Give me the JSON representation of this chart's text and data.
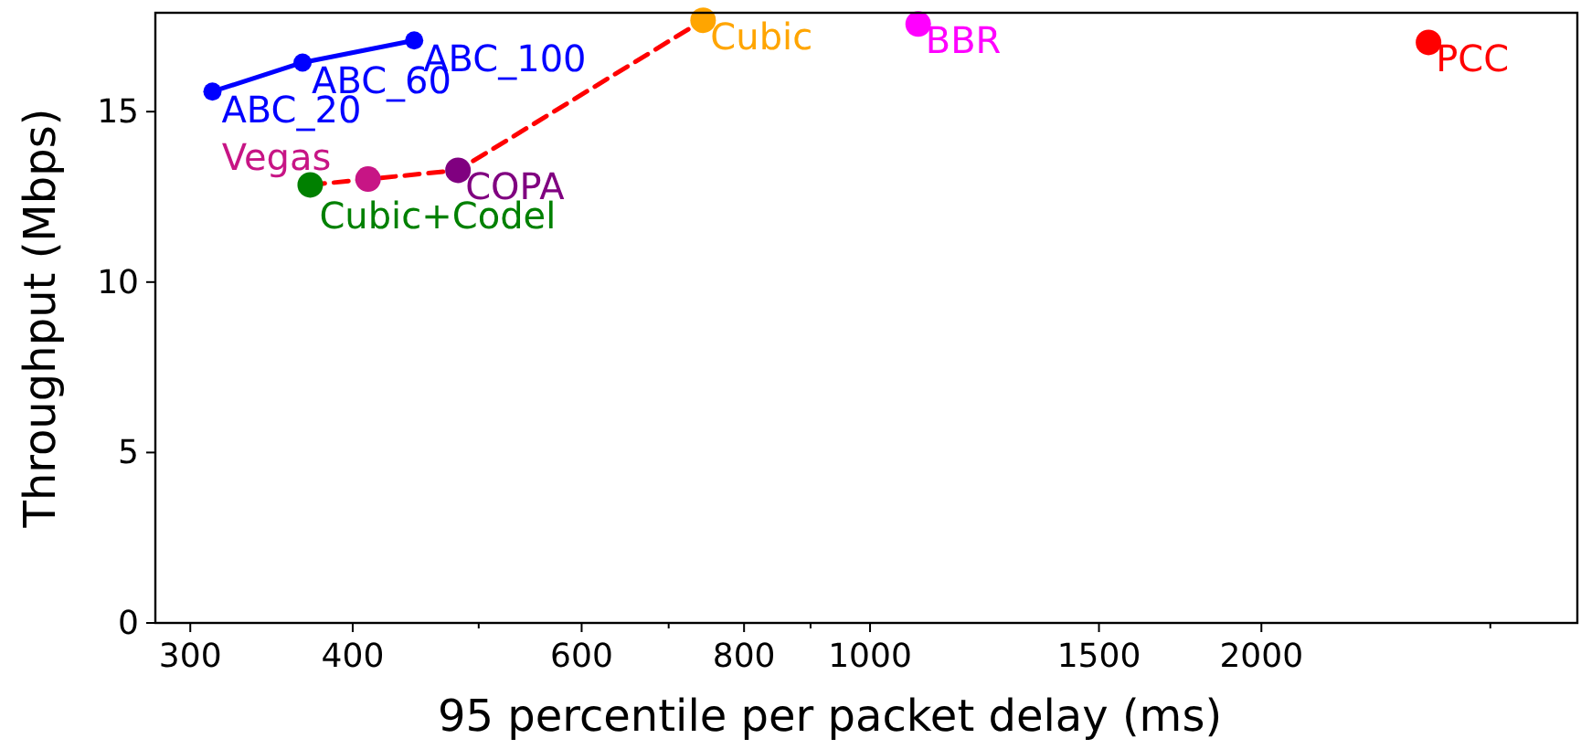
{
  "chart_data": {
    "type": "scatter",
    "xlabel": "95 percentile per packet delay (ms)",
    "ylabel": "Throughput (Mbps)",
    "log": "x",
    "xlim": [
      282,
      3500
    ],
    "ylim": [
      0,
      17.9
    ],
    "xticks": [
      300,
      400,
      {
        "value": 500,
        "label": null
      },
      600,
      {
        "value": 700,
        "label": null
      },
      800,
      {
        "value": 900,
        "label": null
      },
      1000,
      1500,
      2000,
      {
        "value": 3000,
        "label": null
      }
    ],
    "yticks": [
      0,
      5,
      10,
      15
    ],
    "grid": false,
    "series": [
      {
        "type": "line",
        "color": "#0000ff",
        "x": [
          312,
          366,
          446
        ],
        "values": [
          15.59,
          16.44,
          17.09
        ],
        "marker": "circle",
        "line_style": "solid"
      },
      {
        "type": "line",
        "color": "#ff0000",
        "x": [
          371,
          411,
          482,
          744
        ],
        "values": [
          12.85,
          13.02,
          13.28,
          17.68
        ],
        "marker": "none",
        "line_style": "dashed"
      },
      {
        "name": "Cubic",
        "color": "#ffa500",
        "x": [
          744
        ],
        "values": [
          17.68
        ]
      },
      {
        "name": "Cubic+Codel",
        "color": "#008000",
        "x": [
          371
        ],
        "values": [
          12.85
        ]
      },
      {
        "name": "Vegas",
        "color": "#c71585",
        "x": [
          411
        ],
        "values": [
          13.02
        ]
      },
      {
        "name": "COPA",
        "color": "#800080",
        "x": [
          482
        ],
        "values": [
          13.28
        ]
      },
      {
        "name": "BBR",
        "color": "#ff00ff",
        "x": [
          1089
        ],
        "values": [
          17.57
        ]
      },
      {
        "name": "PCC",
        "color": "#ff0000",
        "x": [
          2689
        ],
        "values": [
          17.03
        ]
      }
    ],
    "annotations": [
      {
        "text": "ABC_20",
        "x": 312,
        "y": 15.59
      },
      {
        "text": "ABC_60",
        "x": 366,
        "y": 16.44
      },
      {
        "text": "ABC_100",
        "x": 446,
        "y": 17.09
      }
    ]
  }
}
